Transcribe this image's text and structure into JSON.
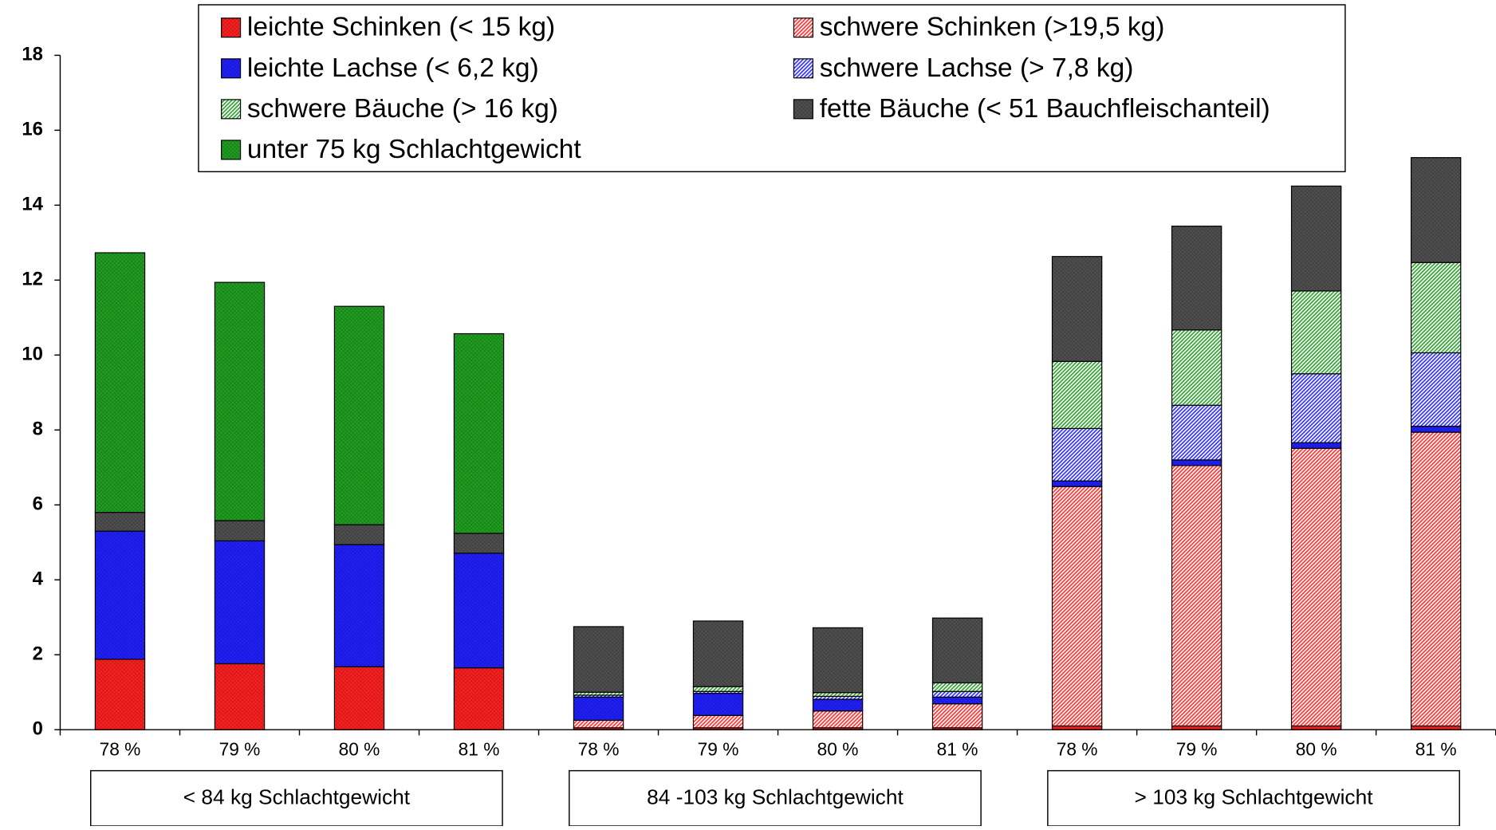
{
  "chart_data": {
    "type": "stacked_bar",
    "categories": [
      "78 %",
      "79 %",
      "80 %",
      "81 %",
      "78 %",
      "79 %",
      "80 %",
      "81 %",
      "78 %",
      "79 %",
      "80 %",
      "81 %"
    ],
    "groups": [
      "< 84 kg Schlachtgewicht",
      "84 -103 kg Schlachtgewicht",
      "> 103 kg Schlachtgewicht"
    ],
    "ylim": [
      0,
      18
    ],
    "yticks": [
      0,
      2,
      4,
      6,
      8,
      10,
      12,
      14,
      16,
      18
    ],
    "series": [
      {
        "name": "leichte Schinken (< 15 kg)",
        "color": "#ff2020",
        "pattern": "solid",
        "values": [
          1.88,
          1.76,
          1.68,
          1.65,
          0.05,
          0.05,
          0.05,
          0.05,
          0.1,
          0.1,
          0.1,
          0.1
        ]
      },
      {
        "name": "schwere Schinken (>19,5 kg)",
        "color": "#ff3030",
        "pattern": "diagonal",
        "values": [
          0,
          0,
          0,
          0,
          0.2,
          0.33,
          0.45,
          0.64,
          6.39,
          6.95,
          7.41,
          7.84
        ]
      },
      {
        "name": "leichte Lachse (< 6,2 kg)",
        "color": "#2020ff",
        "pattern": "solid",
        "values": [
          3.42,
          3.28,
          3.26,
          3.06,
          0.62,
          0.59,
          0.31,
          0.18,
          0.15,
          0.15,
          0.15,
          0.16
        ]
      },
      {
        "name": "schwere Lachse (> 7,8 kg)",
        "color": "#3030ff",
        "pattern": "diagonal",
        "values": [
          0,
          0,
          0,
          0,
          0.05,
          0.05,
          0.08,
          0.15,
          1.4,
          1.46,
          1.84,
          1.96
        ]
      },
      {
        "name": "schwere Bäuche (> 16 kg)",
        "color": "#30a030",
        "pattern": "diagonal",
        "values": [
          0,
          0,
          0,
          0,
          0.08,
          0.13,
          0.1,
          0.23,
          1.79,
          2.01,
          2.21,
          2.41
        ]
      },
      {
        "name": "fette Bäuche (< 51 Bauchfleischanteil)",
        "color": "#505050",
        "pattern": "solid",
        "values": [
          0.5,
          0.54,
          0.53,
          0.53,
          1.75,
          1.75,
          1.73,
          1.73,
          2.8,
          2.77,
          2.8,
          2.8
        ]
      },
      {
        "name": "unter 75 kg Schlachtgewicht",
        "color": "#20a020",
        "pattern": "solid",
        "values": [
          6.93,
          6.36,
          5.83,
          5.33,
          0,
          0,
          0,
          0,
          0,
          0,
          0,
          0
        ]
      }
    ]
  }
}
